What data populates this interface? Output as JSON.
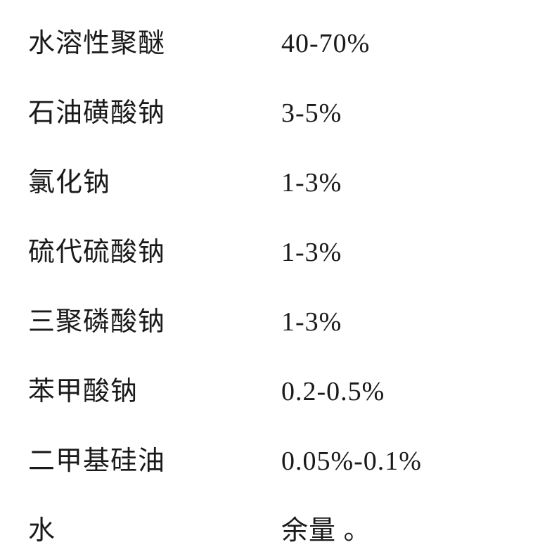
{
  "table": {
    "rows": [
      {
        "label": "水溶性聚醚",
        "value": "40-70%"
      },
      {
        "label": "石油磺酸钠",
        "value": "3-5%"
      },
      {
        "label": "氯化钠",
        "value": "1-3%"
      },
      {
        "label": "硫代硫酸钠",
        "value": "1-3%"
      },
      {
        "label": "三聚磷酸钠",
        "value": "1-3%"
      },
      {
        "label": "苯甲酸钠",
        "value": "0.2-0.5%"
      },
      {
        "label": "二甲基硅油",
        "value": "0.05%-0.1%"
      },
      {
        "label": "水",
        "value": "余量 。"
      }
    ],
    "font_size": 38,
    "text_color": "#1a1a1a",
    "background_color": "#ffffff",
    "label_column_width": 360,
    "row_spacing": 44
  }
}
